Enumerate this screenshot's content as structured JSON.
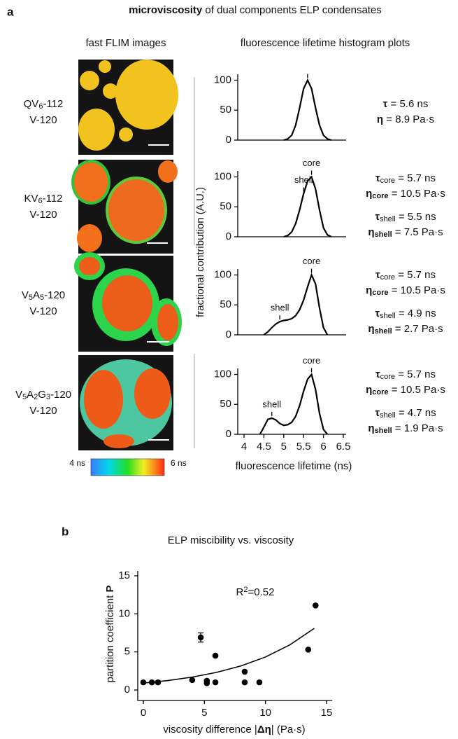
{
  "panel_a": {
    "label": "a",
    "title": [
      {
        "text": "microviscosity",
        "bold": true
      },
      {
        "text": " of dual components ELP condensates"
      }
    ],
    "images_header": "fast FLIM images",
    "plots_header": "fluorescence lifetime histogram plots",
    "ylabel": "fractional contribution (A.U.)",
    "colorbar": {
      "min_label": "4 ns",
      "max_label": "6 ns"
    },
    "rows": [
      {
        "sample": [
          {
            "text": "QV"
          },
          {
            "text": "6",
            "sub": true
          },
          {
            "text": "-112"
          }
        ],
        "control": "V-120",
        "stats": [
          [
            {
              "text": "τ",
              "bold": true
            },
            {
              "text": " = 5.6 ns"
            }
          ],
          [
            {
              "text": "η",
              "bold": true
            },
            {
              "text": " = 8.9 Pa·s"
            }
          ]
        ]
      },
      {
        "sample": [
          {
            "text": "KV"
          },
          {
            "text": "6",
            "sub": true
          },
          {
            "text": "-112"
          }
        ],
        "control": "V-120",
        "stats": [
          [
            {
              "text": "τ",
              "bold": true
            },
            {
              "text": "core",
              "sub": true
            },
            {
              "text": " = 5.7 ns"
            }
          ],
          [
            {
              "text": "η",
              "bold": true
            },
            {
              "text": "core",
              "sub": true,
              "bold": true
            },
            {
              "text": " = 10.5 Pa·s"
            }
          ],
          [
            {
              "text": "τ",
              "bold": true
            },
            {
              "text": "shell",
              "sub": true
            },
            {
              "text": " = 5.5 ns"
            }
          ],
          [
            {
              "text": "η",
              "bold": true
            },
            {
              "text": "shell",
              "sub": true,
              "bold": true
            },
            {
              "text": " = 7.5 Pa·s"
            }
          ]
        ]
      },
      {
        "sample": [
          {
            "text": "V"
          },
          {
            "text": "5",
            "sub": true
          },
          {
            "text": "A"
          },
          {
            "text": "5",
            "sub": true
          },
          {
            "text": "-120"
          }
        ],
        "control": "V-120",
        "stats": [
          [
            {
              "text": "τ",
              "bold": true
            },
            {
              "text": "core",
              "sub": true
            },
            {
              "text": " = 5.7 ns"
            }
          ],
          [
            {
              "text": "η",
              "bold": true
            },
            {
              "text": "core",
              "sub": true,
              "bold": true
            },
            {
              "text": " = 10.5 Pa·s"
            }
          ],
          [
            {
              "text": "τ",
              "bold": true
            },
            {
              "text": "shell",
              "sub": true
            },
            {
              "text": " = 4.9 ns"
            }
          ],
          [
            {
              "text": "η",
              "bold": true
            },
            {
              "text": "shell",
              "sub": true,
              "bold": true
            },
            {
              "text": " = 2.7 Pa·s"
            }
          ]
        ]
      },
      {
        "sample": [
          {
            "text": "V"
          },
          {
            "text": "5",
            "sub": true
          },
          {
            "text": "A"
          },
          {
            "text": "2",
            "sub": true
          },
          {
            "text": "G"
          },
          {
            "text": "3",
            "sub": true
          },
          {
            "text": "-120"
          }
        ],
        "control": "V-120",
        "stats": [
          [
            {
              "text": "τ",
              "bold": true
            },
            {
              "text": "core",
              "sub": true
            },
            {
              "text": " = 5.7 ns"
            }
          ],
          [
            {
              "text": "η",
              "bold": true
            },
            {
              "text": "core",
              "sub": true,
              "bold": true
            },
            {
              "text": " = 10.5 Pa·s"
            }
          ],
          [
            {
              "text": "τ",
              "bold": true
            },
            {
              "text": "shell",
              "sub": true
            },
            {
              "text": " = 4.7 ns"
            }
          ],
          [
            {
              "text": "η",
              "bold": true
            },
            {
              "text": "shell",
              "sub": true,
              "bold": true
            },
            {
              "text": " = 1.9 Pa·s"
            }
          ]
        ]
      }
    ]
  },
  "panel_b": {
    "label": "b"
  },
  "chart_data": [
    {
      "type": "line",
      "x": [
        5.0,
        5.1,
        5.2,
        5.3,
        5.4,
        5.5,
        5.6,
        5.7,
        5.8,
        5.9,
        6.0,
        6.1,
        6.2
      ],
      "series": [
        {
          "color": "#000000",
          "values": [
            0,
            2,
            8,
            25,
            54,
            86,
            100,
            86,
            54,
            25,
            8,
            2,
            0
          ]
        }
      ],
      "xlim": [
        4,
        6.5
      ],
      "ylim": [
        0,
        110
      ],
      "yticks": [
        0,
        50,
        100
      ],
      "peak": 5.6
    },
    {
      "type": "line",
      "x": [
        5.0,
        5.1,
        5.2,
        5.3,
        5.4,
        5.5,
        5.6,
        5.7,
        5.8,
        5.9,
        6.0,
        6.1,
        6.2
      ],
      "series": [
        {
          "color": "#000000",
          "values": [
            0,
            2,
            8,
            22,
            45,
            72,
            93,
            100,
            80,
            45,
            15,
            3,
            0
          ]
        }
      ],
      "xlim": [
        4,
        6.5
      ],
      "ylim": [
        0,
        110
      ],
      "yticks": [
        0,
        50,
        100
      ],
      "annotations": [
        {
          "text": "shell",
          "x": 5.5
        },
        {
          "text": "core",
          "x": 5.7
        }
      ]
    },
    {
      "type": "line",
      "x": [
        4.5,
        4.6,
        4.7,
        4.8,
        4.9,
        5.0,
        5.1,
        5.2,
        5.3,
        5.4,
        5.5,
        5.6,
        5.7,
        5.8,
        5.9,
        6.0,
        6.1
      ],
      "series": [
        {
          "color": "#000000",
          "values": [
            0,
            5,
            12,
            18,
            22,
            24,
            25,
            27,
            32,
            42,
            58,
            80,
            100,
            85,
            45,
            12,
            0
          ]
        }
      ],
      "xlim": [
        4,
        6.5
      ],
      "ylim": [
        0,
        110
      ],
      "yticks": [
        0,
        50,
        100
      ],
      "annotations": [
        {
          "text": "shell",
          "x": 4.9
        },
        {
          "text": "core",
          "x": 5.7
        }
      ]
    },
    {
      "type": "line",
      "x": [
        4.4,
        4.5,
        4.6,
        4.7,
        4.8,
        4.9,
        5.0,
        5.1,
        5.2,
        5.3,
        5.4,
        5.5,
        5.6,
        5.7,
        5.8,
        5.9,
        6.0,
        6.1
      ],
      "series": [
        {
          "color": "#000000",
          "values": [
            0,
            12,
            25,
            27,
            24,
            18,
            15,
            16,
            20,
            30,
            48,
            72,
            92,
            100,
            75,
            35,
            8,
            0
          ]
        }
      ],
      "xlim": [
        4,
        6.5
      ],
      "ylim": [
        0,
        110
      ],
      "yticks": [
        0,
        50,
        100
      ],
      "xticks": [
        4,
        4.5,
        5,
        5.5,
        6,
        6.5
      ],
      "xlabel": "fluorescence lifetime (ns)",
      "annotations": [
        {
          "text": "shell",
          "x": 4.7
        },
        {
          "text": "core",
          "x": 5.7
        }
      ]
    },
    {
      "type": "scatter",
      "title": "ELP miscibility vs. viscosity",
      "xlabel": [
        {
          "text": "viscosity difference |"
        },
        {
          "text": "Δη",
          "bold": true
        },
        {
          "text": "| (Pa·s)"
        }
      ],
      "ylabel": [
        {
          "text": "partition coefficient "
        },
        {
          "text": "P",
          "bold": true
        }
      ],
      "annotation": [
        {
          "text": "R"
        },
        {
          "text": "2",
          "sup": true
        },
        {
          "text": "=0.52"
        }
      ],
      "x": [
        0,
        0.7,
        1.2,
        4.0,
        4.7,
        5.2,
        5.2,
        5.9,
        5.9,
        8.3,
        8.3,
        9.5,
        13.5,
        14.1
      ],
      "series": [
        {
          "color": "#000000",
          "values": [
            1,
            1,
            1,
            1.3,
            6.9,
            1.2,
            0.9,
            4.5,
            1,
            2.4,
            1,
            1,
            5.3,
            11.1
          ],
          "errors": [
            null,
            null,
            null,
            null,
            0.6,
            null,
            null,
            null,
            null,
            null,
            null,
            null,
            null,
            null
          ]
        }
      ],
      "fit": {
        "color": "#000000",
        "x": [
          0,
          2,
          4,
          6,
          8,
          10,
          12,
          14
        ],
        "values": [
          0.9,
          1.24,
          1.69,
          2.31,
          3.16,
          4.33,
          5.93,
          8.1
        ]
      },
      "xlim": [
        0,
        15
      ],
      "ylim": [
        0,
        15
      ],
      "xticks": [
        0,
        5,
        10,
        15
      ],
      "yticks": [
        0,
        5,
        10,
        15
      ]
    }
  ]
}
